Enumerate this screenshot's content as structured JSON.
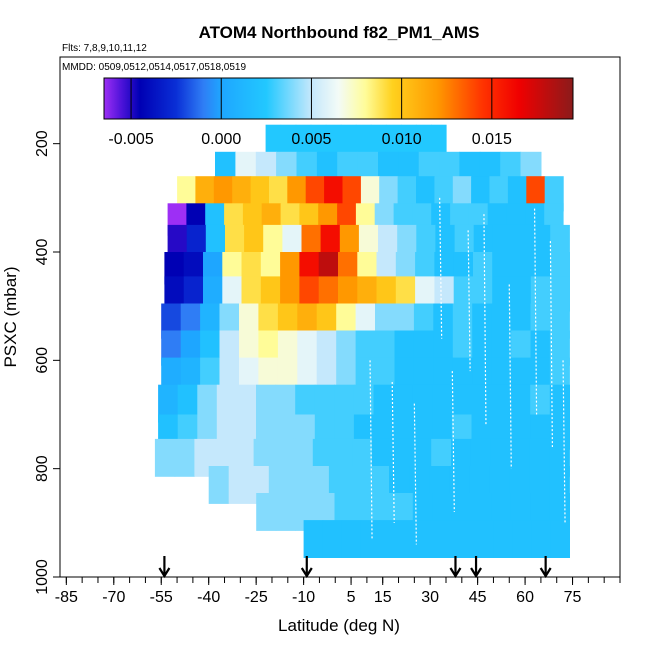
{
  "chart_data": {
    "type": "heatmap",
    "title": "ATOM4 Northbound f82_PM1_AMS",
    "annotations": [
      "Flts: 7,8,9,10,11,12",
      "MMDD: 0509,0512,0514,0517,0518,0519"
    ],
    "xlabel": "Latitude (deg N)",
    "ylabel": "PSXC (mbar)",
    "xlim": [
      -87,
      90
    ],
    "ylim": [
      1000,
      40
    ],
    "x_ticks": [
      -85,
      -70,
      -55,
      -40,
      -25,
      -10,
      5,
      15,
      30,
      45,
      60,
      75
    ],
    "x_minor_step": 5,
    "y_ticks": [
      200,
      400,
      600,
      800,
      1000
    ],
    "colorbar": {
      "range": [
        -0.0065,
        0.0195
      ],
      "ticks": [
        -0.005,
        0.0,
        0.005,
        0.01,
        0.015
      ],
      "tick_labels": [
        "-0.005",
        "0.000",
        "0.005",
        "0.010",
        "0.015"
      ],
      "stops": [
        {
          "v": -0.0065,
          "c": "#9d2ff5"
        },
        {
          "v": -0.0055,
          "c": "#4b12d8"
        },
        {
          "v": -0.0045,
          "c": "#0000b4"
        },
        {
          "v": -0.0025,
          "c": "#0a2fd6"
        },
        {
          "v": -0.001,
          "c": "#2f7df5"
        },
        {
          "v": 0.0,
          "c": "#1ea6ff"
        },
        {
          "v": 0.0025,
          "c": "#22c8ff"
        },
        {
          "v": 0.005,
          "c": "#c5e8fc"
        },
        {
          "v": 0.0065,
          "c": "#f3fbf7"
        },
        {
          "v": 0.008,
          "c": "#fffc98"
        },
        {
          "v": 0.0095,
          "c": "#ffd11e"
        },
        {
          "v": 0.012,
          "c": "#ff9800"
        },
        {
          "v": 0.0145,
          "c": "#ff3300"
        },
        {
          "v": 0.0165,
          "c": "#f00000"
        },
        {
          "v": 0.0195,
          "c": "#8b1b1b"
        }
      ]
    },
    "rows": [
      {
        "p_top": 165,
        "p_bot": 235,
        "x0": -22,
        "x1": 35,
        "v": [
          0.0025,
          0.0025,
          0.0025,
          0.0025,
          0.0025,
          0.0025,
          0.0025,
          0.0025,
          0.0025,
          0.0025,
          0.0025,
          0.0025
        ]
      },
      {
        "p_top": 215,
        "p_bot": 280,
        "x0": -38,
        "x1": 65,
        "v": [
          0.002,
          0.006,
          0.005,
          0.004,
          0.003,
          0.002,
          0.003,
          0.003,
          0.002,
          0.002,
          0.003,
          0.003,
          0.002,
          0.002,
          0.003,
          0.004
        ]
      },
      {
        "p_top": 260,
        "p_bot": 325,
        "x0": -50,
        "x1": 72,
        "v": [
          0.008,
          0.011,
          0.012,
          0.011,
          0.01,
          0.009,
          0.012,
          0.014,
          0.016,
          0.014,
          0.007,
          0.004,
          0.003,
          0.002,
          0.003,
          0.004,
          0.002,
          0.003,
          0.002,
          0.014,
          0.003
        ]
      },
      {
        "p_top": 310,
        "p_bot": 370,
        "x0": -53,
        "x1": 72,
        "v": [
          -0.0065,
          -0.0045,
          0.002,
          0.009,
          0.01,
          0.011,
          0.009,
          0.01,
          0.012,
          0.014,
          0.008,
          0.004,
          0.003,
          0.003,
          0.002,
          0.003,
          0.003,
          0.002,
          0.002,
          0.002,
          0.003
        ]
      },
      {
        "p_top": 350,
        "p_bot": 420,
        "x0": -53,
        "x1": 74,
        "v": [
          -0.005,
          -0.003,
          0.002,
          0.009,
          0.01,
          0.008,
          0.006,
          0.013,
          0.016,
          0.012,
          0.007,
          0.005,
          0.004,
          0.003,
          0.002,
          0.003,
          0.002,
          0.002,
          0.002,
          0.002,
          0.003
        ]
      },
      {
        "p_top": 400,
        "p_bot": 460,
        "x0": -54,
        "x1": 74,
        "v": [
          -0.0045,
          -0.004,
          0.0,
          0.008,
          0.009,
          0.008,
          0.012,
          0.016,
          0.018,
          0.013,
          0.008,
          0.005,
          0.004,
          0.003,
          0.002,
          0.002,
          0.003,
          0.002,
          0.002,
          0.002,
          0.003
        ]
      },
      {
        "p_top": 445,
        "p_bot": 510,
        "x0": -54,
        "x1": 74,
        "v": [
          -0.004,
          -0.003,
          0.0005,
          0.006,
          0.009,
          0.01,
          0.012,
          0.014,
          0.013,
          0.012,
          0.011,
          0.01,
          0.009,
          0.006,
          0.005,
          0.003,
          0.003,
          0.002,
          0.002,
          0.003,
          0.003
        ]
      },
      {
        "p_top": 495,
        "p_bot": 560,
        "x0": -55,
        "x1": 74,
        "v": [
          -0.002,
          -0.001,
          0.001,
          0.004,
          0.007,
          0.009,
          0.01,
          0.011,
          0.01,
          0.008,
          0.006,
          0.004,
          0.004,
          0.003,
          0.002,
          0.003,
          0.002,
          0.002,
          0.002,
          0.003,
          0.003
        ]
      },
      {
        "p_top": 545,
        "p_bot": 610,
        "x0": -55,
        "x1": 74,
        "v": [
          -0.001,
          0.0,
          0.002,
          0.005,
          0.007,
          0.008,
          0.007,
          0.006,
          0.005,
          0.004,
          0.003,
          0.003,
          0.002,
          0.002,
          0.002,
          0.003,
          0.002,
          0.002,
          0.003,
          0.002,
          0.003
        ]
      },
      {
        "p_top": 595,
        "p_bot": 665,
        "x0": -55,
        "x1": 74,
        "v": [
          0.0005,
          0.001,
          0.003,
          0.005,
          0.006,
          0.007,
          0.007,
          0.006,
          0.005,
          0.004,
          0.003,
          0.003,
          0.002,
          0.002,
          0.002,
          0.002,
          0.002,
          0.002,
          0.002,
          0.002,
          0.003
        ]
      },
      {
        "p_top": 645,
        "p_bot": 715,
        "x0": -56,
        "x1": 74,
        "v": [
          0.001,
          0.002,
          0.004,
          0.005,
          0.005,
          0.004,
          0.004,
          0.003,
          0.003,
          0.003,
          0.003,
          0.002,
          0.002,
          0.002,
          0.002,
          0.002,
          0.002,
          0.002,
          0.002,
          0.003,
          0.002
        ]
      },
      {
        "p_top": 700,
        "p_bot": 765,
        "x0": -56,
        "x1": 74,
        "v": [
          0.002,
          0.003,
          0.004,
          0.005,
          0.005,
          0.004,
          0.004,
          0.004,
          0.003,
          0.003,
          0.002,
          0.002,
          0.002,
          0.002,
          0.002,
          0.003,
          0.002,
          0.002,
          0.002,
          0.002,
          0.002
        ]
      },
      {
        "p_top": 745,
        "p_bot": 815,
        "x0": -57,
        "x1": 74,
        "v": [
          0.004,
          0.004,
          0.005,
          0.005,
          0.005,
          0.004,
          0.004,
          0.004,
          0.003,
          0.003,
          0.003,
          0.002,
          0.002,
          0.002,
          0.003,
          0.002,
          0.002,
          0.002,
          0.002,
          0.002,
          0.002
        ]
      },
      {
        "p_top": 795,
        "p_bot": 865,
        "x0": -40,
        "x1": 74,
        "v": [
          0.004,
          0.005,
          0.005,
          0.004,
          0.004,
          0.004,
          0.003,
          0.003,
          0.003,
          0.002,
          0.002,
          0.002,
          0.002,
          0.002,
          0.002,
          0.002,
          0.002,
          0.002
        ]
      },
      {
        "p_top": 845,
        "p_bot": 915,
        "x0": -25,
        "x1": 74,
        "v": [
          0.004,
          0.004,
          0.004,
          0.004,
          0.003,
          0.003,
          0.003,
          0.003,
          0.002,
          0.002,
          0.002,
          0.002,
          0.002,
          0.002,
          0.002,
          0.002
        ]
      },
      {
        "p_top": 895,
        "p_bot": 965,
        "x0": -10,
        "x1": 74,
        "v": [
          0.002,
          0.002,
          0.002,
          0.002,
          0.002,
          0.002,
          0.002,
          0.002,
          0.002,
          0.002,
          0.002,
          0.002,
          0.002,
          0.002
        ]
      }
    ],
    "white_streaks": [
      {
        "x": 33,
        "p0": 300,
        "p1": 560
      },
      {
        "x": 42,
        "p0": 360,
        "p1": 620
      },
      {
        "x": 47,
        "p0": 330,
        "p1": 720
      },
      {
        "x": 55,
        "p0": 460,
        "p1": 800
      },
      {
        "x": 63,
        "p0": 320,
        "p1": 700
      },
      {
        "x": 68,
        "p0": 380,
        "p1": 760
      },
      {
        "x": 11,
        "p0": 600,
        "p1": 930
      },
      {
        "x": 18,
        "p0": 640,
        "p1": 900
      },
      {
        "x": 25,
        "p0": 680,
        "p1": 940
      },
      {
        "x": 37,
        "p0": 620,
        "p1": 880
      },
      {
        "x": 72,
        "p0": 600,
        "p1": 900
      }
    ],
    "flight_markers_lat": [
      -54,
      -9,
      38,
      44.5,
      66.5
    ]
  }
}
